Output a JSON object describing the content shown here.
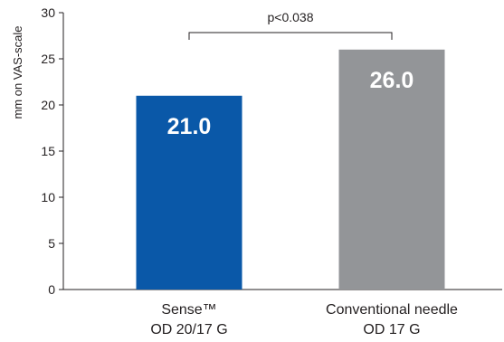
{
  "chart_data": {
    "type": "bar",
    "categories": [
      [
        "Sense™",
        "OD 20/17 G"
      ],
      [
        "Conventional needle",
        "OD 17 G"
      ]
    ],
    "values": [
      21.0,
      26.0
    ],
    "data_labels": [
      "21.0",
      "26.0"
    ],
    "bar_colors": [
      "#0a58a8",
      "#939598"
    ],
    "title": "",
    "xlabel": "",
    "ylabel": "mm on VAS-scale",
    "ylim": [
      0,
      30
    ],
    "yticks": [
      0,
      5,
      10,
      15,
      20,
      25,
      30
    ],
    "grid": false,
    "legend": "none",
    "annotation": {
      "text": "p<0.038",
      "spans": [
        0,
        1
      ]
    }
  }
}
